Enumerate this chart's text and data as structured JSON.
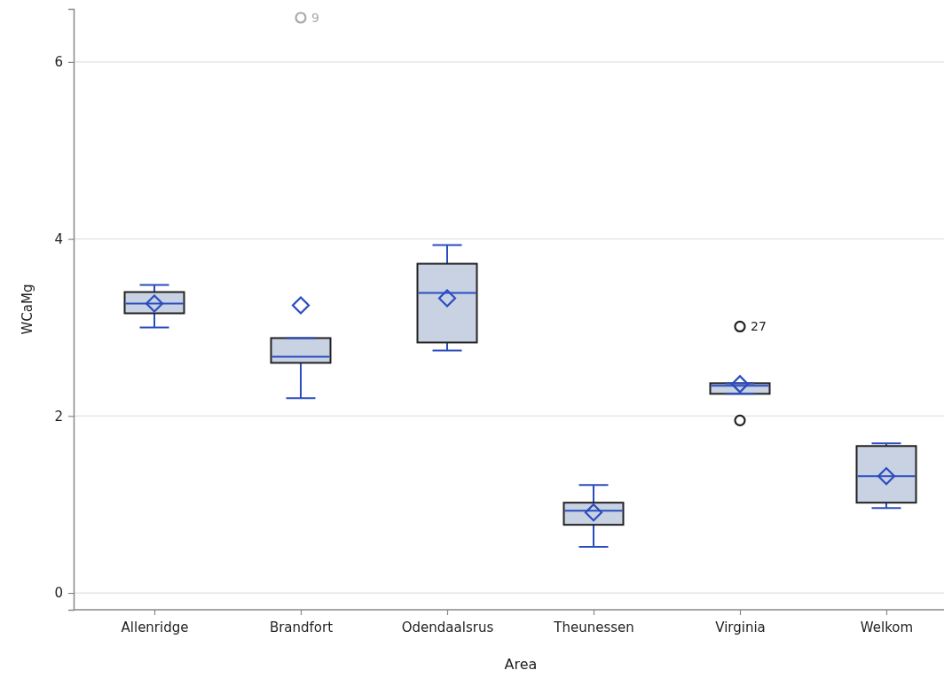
{
  "chart_data": {
    "type": "box",
    "xlabel": "Area",
    "ylabel": "WCaMg",
    "categories": [
      "Allenridge",
      "Brandfort",
      "Odendaalsrus",
      "Theunessen",
      "Virginia",
      "Welkom"
    ],
    "color": "#c8d2e3",
    "boxes": [
      {
        "low": 3.0,
        "q1": 3.16,
        "median": 3.27,
        "q3": 3.4,
        "high": 3.48,
        "mean": 3.27
      },
      {
        "low": 2.2,
        "q1": 2.6,
        "median": 2.67,
        "q3": 2.88,
        "high": 2.88,
        "mean": 3.25,
        "outliers": [
          6.5
        ]
      },
      {
        "low": 2.74,
        "q1": 2.83,
        "median": 3.39,
        "q3": 3.72,
        "high": 3.93,
        "mean": 3.33
      },
      {
        "low": 0.52,
        "q1": 0.77,
        "median": 0.93,
        "q3": 1.02,
        "high": 1.22,
        "mean": 0.91
      },
      {
        "low": 2.25,
        "q1": 2.25,
        "median": 2.34,
        "q3": 2.37,
        "high": 2.37,
        "mean": 2.36,
        "outliers": [
          3.01,
          1.95
        ]
      },
      {
        "low": 0.96,
        "q1": 1.02,
        "median": 1.32,
        "q3": 1.66,
        "high": 1.69,
        "mean": 1.32
      }
    ],
    "ylim": [
      -0.19,
      6.6
    ],
    "yticks": [
      0,
      2,
      4,
      6
    ],
    "grid": "y",
    "annotations": [
      "9",
      "27"
    ]
  }
}
